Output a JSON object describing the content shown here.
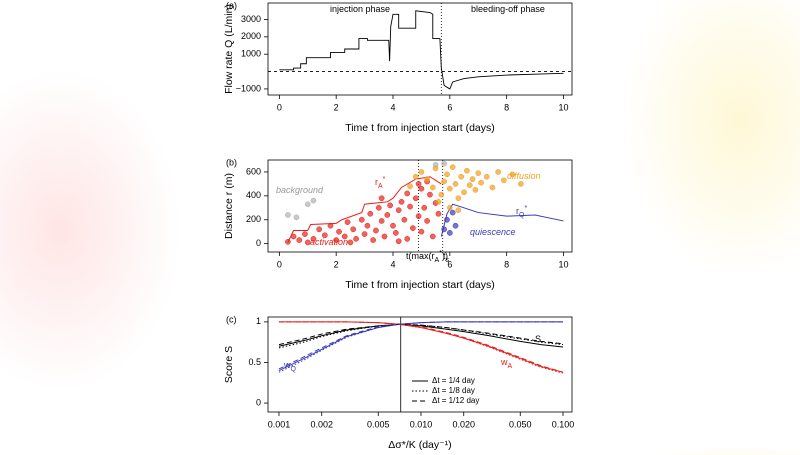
{
  "chart_data": [
    {
      "type": "line",
      "panel_label": "(a)",
      "x_label": "Time t from injection start (days)",
      "y_label": "Flow rate Q (L/min)",
      "xlim": [
        -0.4,
        10.3
      ],
      "xticks": [
        0,
        2,
        4,
        6,
        8,
        10
      ],
      "ylim": [
        -1350,
        3950
      ],
      "yticks": [
        {
          "value": -1000,
          "label": "−1000"
        },
        1000,
        2000,
        3000
      ],
      "hlines": [
        0
      ],
      "vlines": [
        5.7
      ],
      "x": [
        0,
        0.5,
        0.5,
        0.75,
        0.75,
        0.95,
        0.95,
        1.8,
        1.8,
        2.3,
        2.3,
        2.8,
        2.8,
        3.1,
        3.1,
        3.85,
        3.88,
        3.92,
        4.0,
        4.2,
        4.2,
        4.8,
        4.8,
        5.3,
        5.4,
        5.4,
        5.65,
        5.7,
        5.8,
        6.0,
        6.1,
        6.3,
        6.5,
        7.0,
        7.5,
        8.0,
        9.0,
        10.0
      ],
      "series": [
        {
          "color": "#000000",
          "values": [
            100,
            100,
            200,
            200,
            450,
            450,
            800,
            800,
            1100,
            1100,
            1300,
            1300,
            1900,
            1900,
            1800,
            1800,
            600,
            2600,
            3300,
            3300,
            2500,
            2500,
            3500,
            3400,
            3300,
            1900,
            1900,
            200,
            -800,
            -1000,
            -600,
            -500,
            -400,
            -300,
            -250,
            -200,
            -150,
            -100
          ]
        }
      ],
      "annotations": [
        {
          "parts": [
            "injection phase"
          ]
        },
        {
          "parts": [
            "bleeding-off phase"
          ]
        }
      ]
    },
    {
      "type": "scatter",
      "panel_label": "(b)",
      "x_label": "Time t from injection start (days)",
      "y_label": "Distance r (m)",
      "xlim": [
        -0.4,
        10.3
      ],
      "xticks": [
        0,
        2,
        4,
        6,
        8,
        10
      ],
      "ylim": [
        -70,
        700
      ],
      "yticks": [
        0,
        200,
        400,
        600
      ],
      "vlines": [
        4.9,
        5.75
      ],
      "series": [
        {
          "color": "#b0b0b0",
          "x": [
            0.3,
            0.6,
            1.0,
            1.2,
            5.5,
            5.8
          ],
          "values": [
            240,
            220,
            330,
            360,
            660,
            670
          ]
        },
        {
          "color": "#e8201a",
          "x": [
            0.5,
            0.7,
            0.9,
            1.2,
            1.4,
            1.6,
            1.8,
            2.0,
            2.1,
            2.3,
            2.4,
            2.6,
            2.7,
            2.9,
            3.0,
            3.1,
            3.2,
            3.3,
            3.4,
            3.5,
            3.6,
            3.7,
            3.8,
            3.9,
            4.0,
            4.1,
            4.2,
            4.3,
            4.4,
            4.5,
            4.5,
            4.6,
            4.7,
            4.8,
            4.9,
            5.0,
            5.0,
            5.1,
            5.2,
            5.3,
            5.4,
            5.5,
            5.6,
            0.3,
            1.0,
            2.5,
            3.6,
            4.2,
            4.9,
            5.2
          ],
          "values": [
            60,
            30,
            80,
            40,
            120,
            70,
            150,
            30,
            100,
            60,
            180,
            120,
            40,
            200,
            80,
            150,
            250,
            30,
            110,
            300,
            190,
            60,
            240,
            320,
            150,
            90,
            280,
            350,
            200,
            420,
            40,
            310,
            130,
            380,
            230,
            460,
            100,
            300,
            190,
            410,
            60,
            340,
            250,
            15,
            10,
            10,
            380,
            20,
            500,
            520
          ]
        },
        {
          "color": "#f0a020",
          "x": [
            4.6,
            4.8,
            5.0,
            5.2,
            5.4,
            5.5,
            5.7,
            5.8,
            5.9,
            6.0,
            6.1,
            6.2,
            6.3,
            6.4,
            6.5,
            6.6,
            6.7,
            6.8,
            6.9,
            7.0,
            7.1,
            7.3,
            7.5,
            7.7,
            7.9,
            8.2,
            8.5,
            6.0,
            5.6,
            6.3
          ],
          "values": [
            480,
            560,
            600,
            540,
            470,
            630,
            410,
            520,
            580,
            460,
            640,
            500,
            380,
            560,
            430,
            610,
            490,
            540,
            450,
            590,
            510,
            560,
            470,
            600,
            530,
            580,
            500,
            300,
            350,
            280
          ]
        },
        {
          "color": "#3a3ab8",
          "x": [
            5.8,
            5.9,
            6.0,
            6.1,
            6.2
          ],
          "values": [
            120,
            200,
            90,
            260,
            150
          ]
        }
      ],
      "lines": [
        {
          "color": "#e8201a",
          "x": [
            0.3,
            0.5,
            1.0,
            1.1,
            2.0,
            2.2,
            2.9,
            3.0,
            3.8,
            4.0,
            4.3,
            4.8,
            5.3,
            5.7
          ],
          "values": [
            10,
            110,
            110,
            160,
            170,
            200,
            260,
            330,
            350,
            380,
            470,
            540,
            560,
            500
          ]
        },
        {
          "color": "#3a3ab8",
          "x": [
            5.7,
            5.9,
            6.1,
            6.5,
            7.0,
            8.0,
            9.0,
            10.0
          ],
          "values": [
            60,
            250,
            330,
            300,
            260,
            230,
            240,
            190
          ]
        }
      ],
      "annotations": [
        {
          "parts": [
            "background"
          ]
        },
        {
          "parts": [
            "r",
            "A",
            "*"
          ]
        },
        {
          "parts": [
            "diffusion"
          ]
        },
        {
          "parts": [
            "r",
            "Q",
            "*"
          ]
        },
        {
          "parts": [
            "quiescence"
          ]
        },
        {
          "parts": [
            "activation"
          ]
        },
        {
          "parts": [
            "t(max(r",
            "A",
            "*",
            "))"
          ]
        },
        {
          "parts": [
            "t",
            "s"
          ]
        }
      ]
    },
    {
      "type": "line",
      "panel_label": "(c)",
      "xlog": true,
      "x_label": "Δσ*/K (day⁻¹)",
      "y_label": "Score S",
      "xlim": [
        0.000837,
        0.1157
      ],
      "xticks": [
        0.001,
        0.002,
        0.005,
        {
          "value": 0.01,
          "label": "0.010"
        },
        {
          "value": 0.02,
          "label": "0.020"
        },
        {
          "value": 0.05,
          "label": "0.050"
        },
        {
          "value": 0.1,
          "label": "0.100"
        }
      ],
      "ylim": [
        -0.11,
        1.06
      ],
      "yticks": [
        0,
        0.5,
        1
      ],
      "vlines": [
        0.0072
      ],
      "x": [
        0.001,
        0.0015,
        0.002,
        0.003,
        0.005,
        0.007,
        0.01,
        0.015,
        0.02,
        0.03,
        0.05,
        0.07,
        0.1
      ],
      "series": [
        {
          "name": "Δt = 1/4 day",
          "dash": "solid",
          "curves": [
            {
              "color": "#000000",
              "values": [
                0.7,
                0.77,
                0.83,
                0.9,
                0.95,
                0.97,
                0.95,
                0.91,
                0.88,
                0.83,
                0.76,
                0.72,
                0.69
              ]
            },
            {
              "color": "#e8201a",
              "values": [
                1,
                1,
                1,
                1,
                0.99,
                0.97,
                0.93,
                0.86,
                0.8,
                0.7,
                0.55,
                0.45,
                0.38
              ]
            },
            {
              "color": "#3a3ab8",
              "values": [
                0.4,
                0.55,
                0.66,
                0.82,
                0.93,
                0.97,
                0.99,
                1,
                1,
                1,
                1,
                1,
                1
              ]
            }
          ]
        },
        {
          "name": "Δt = 1/8 day",
          "dash": "dotted",
          "curves": [
            {
              "color": "#000000",
              "values": [
                0.68,
                0.75,
                0.82,
                0.89,
                0.95,
                0.97,
                0.96,
                0.93,
                0.9,
                0.85,
                0.79,
                0.75,
                0.72
              ]
            },
            {
              "color": "#e8201a",
              "values": [
                1,
                1,
                1,
                1,
                0.99,
                0.97,
                0.93,
                0.86,
                0.8,
                0.69,
                0.54,
                0.44,
                0.37
              ]
            },
            {
              "color": "#3a3ab8",
              "values": [
                0.38,
                0.53,
                0.65,
                0.81,
                0.93,
                0.97,
                0.99,
                1,
                1,
                1,
                1,
                1,
                1
              ]
            }
          ]
        },
        {
          "name": "Δt = 1/12 day",
          "dash": "dashed",
          "curves": [
            {
              "color": "#000000",
              "values": [
                0.72,
                0.79,
                0.85,
                0.91,
                0.95,
                0.97,
                0.96,
                0.93,
                0.9,
                0.86,
                0.8,
                0.76,
                0.73
              ]
            },
            {
              "color": "#e8201a",
              "values": [
                1,
                1,
                1,
                1,
                0.99,
                0.97,
                0.94,
                0.87,
                0.81,
                0.71,
                0.56,
                0.46,
                0.38
              ]
            },
            {
              "color": "#3a3ab8",
              "values": [
                0.42,
                0.57,
                0.68,
                0.83,
                0.94,
                0.97,
                0.99,
                1,
                1,
                1,
                1,
                1,
                1
              ]
            }
          ]
        }
      ],
      "annotations": [
        {
          "parts": [
            "S"
          ]
        },
        {
          "parts": [
            "w",
            "A"
          ]
        },
        {
          "parts": [
            "w",
            "Q"
          ]
        }
      ]
    }
  ]
}
